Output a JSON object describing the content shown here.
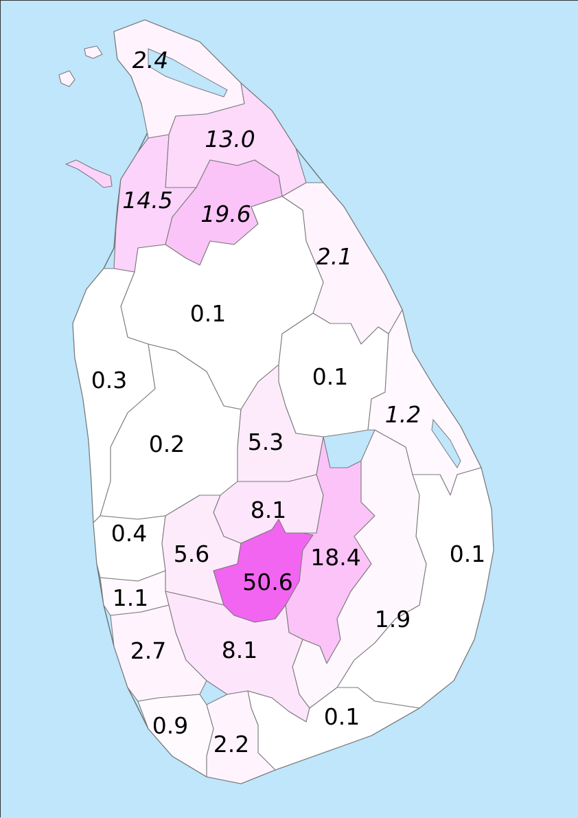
{
  "map": {
    "colors": {
      "sea": "#bfe6fb",
      "land": "#ffffff",
      "border": "#7a7a7a"
    },
    "districts": [
      {
        "id": "jaffna",
        "value": "2.4",
        "italic": true,
        "fill": "#fff3fd"
      },
      {
        "id": "kilinochchi",
        "value": "13.0",
        "italic": true,
        "fill": "#fdd9fa"
      },
      {
        "id": "mannar",
        "value": "14.5",
        "italic": true,
        "fill": "#fcd3fa"
      },
      {
        "id": "vavuniya",
        "value": "19.6",
        "italic": true,
        "fill": "#fbc4f8"
      },
      {
        "id": "trincomalee",
        "value": "2.1",
        "italic": true,
        "fill": "#fff4fe"
      },
      {
        "id": "anuradhapura",
        "value": "0.1",
        "italic": false,
        "fill": "#ffffff"
      },
      {
        "id": "puttalam",
        "value": "0.3",
        "italic": false,
        "fill": "#ffffff"
      },
      {
        "id": "polonnaruwa",
        "value": "0.1",
        "italic": false,
        "fill": "#ffffff"
      },
      {
        "id": "batticaloa",
        "value": "1.2",
        "italic": true,
        "fill": "#fff8fe"
      },
      {
        "id": "kurunegala",
        "value": "0.2",
        "italic": false,
        "fill": "#ffffff"
      },
      {
        "id": "matale",
        "value": "5.3",
        "italic": false,
        "fill": "#fdebfc"
      },
      {
        "id": "kandy",
        "value": "8.1",
        "italic": false,
        "fill": "#fde6fb"
      },
      {
        "id": "gampaha",
        "value": "0.4",
        "italic": false,
        "fill": "#ffffff"
      },
      {
        "id": "kegalle",
        "value": "5.6",
        "italic": false,
        "fill": "#fdebfc"
      },
      {
        "id": "badulla",
        "value": "18.4",
        "italic": false,
        "fill": "#fbc3f8"
      },
      {
        "id": "nuwara-eliya",
        "value": "50.6",
        "italic": false,
        "fill": "#f265f1"
      },
      {
        "id": "ampara",
        "value": "0.1",
        "italic": false,
        "fill": "#ffffff"
      },
      {
        "id": "colombo",
        "value": "1.1",
        "italic": false,
        "fill": "#fff8fe"
      },
      {
        "id": "monaragala",
        "value": "1.9",
        "italic": false,
        "fill": "#fff7fe"
      },
      {
        "id": "kalutara",
        "value": "2.7",
        "italic": false,
        "fill": "#fff3fd"
      },
      {
        "id": "ratnapura",
        "value": "8.1",
        "italic": false,
        "fill": "#fde6fb"
      },
      {
        "id": "galle",
        "value": "0.9",
        "italic": false,
        "fill": "#fffafe"
      },
      {
        "id": "hambantota",
        "value": "0.1",
        "italic": false,
        "fill": "#ffffff"
      },
      {
        "id": "matara",
        "value": "2.2",
        "italic": false,
        "fill": "#fff4fe"
      }
    ]
  }
}
